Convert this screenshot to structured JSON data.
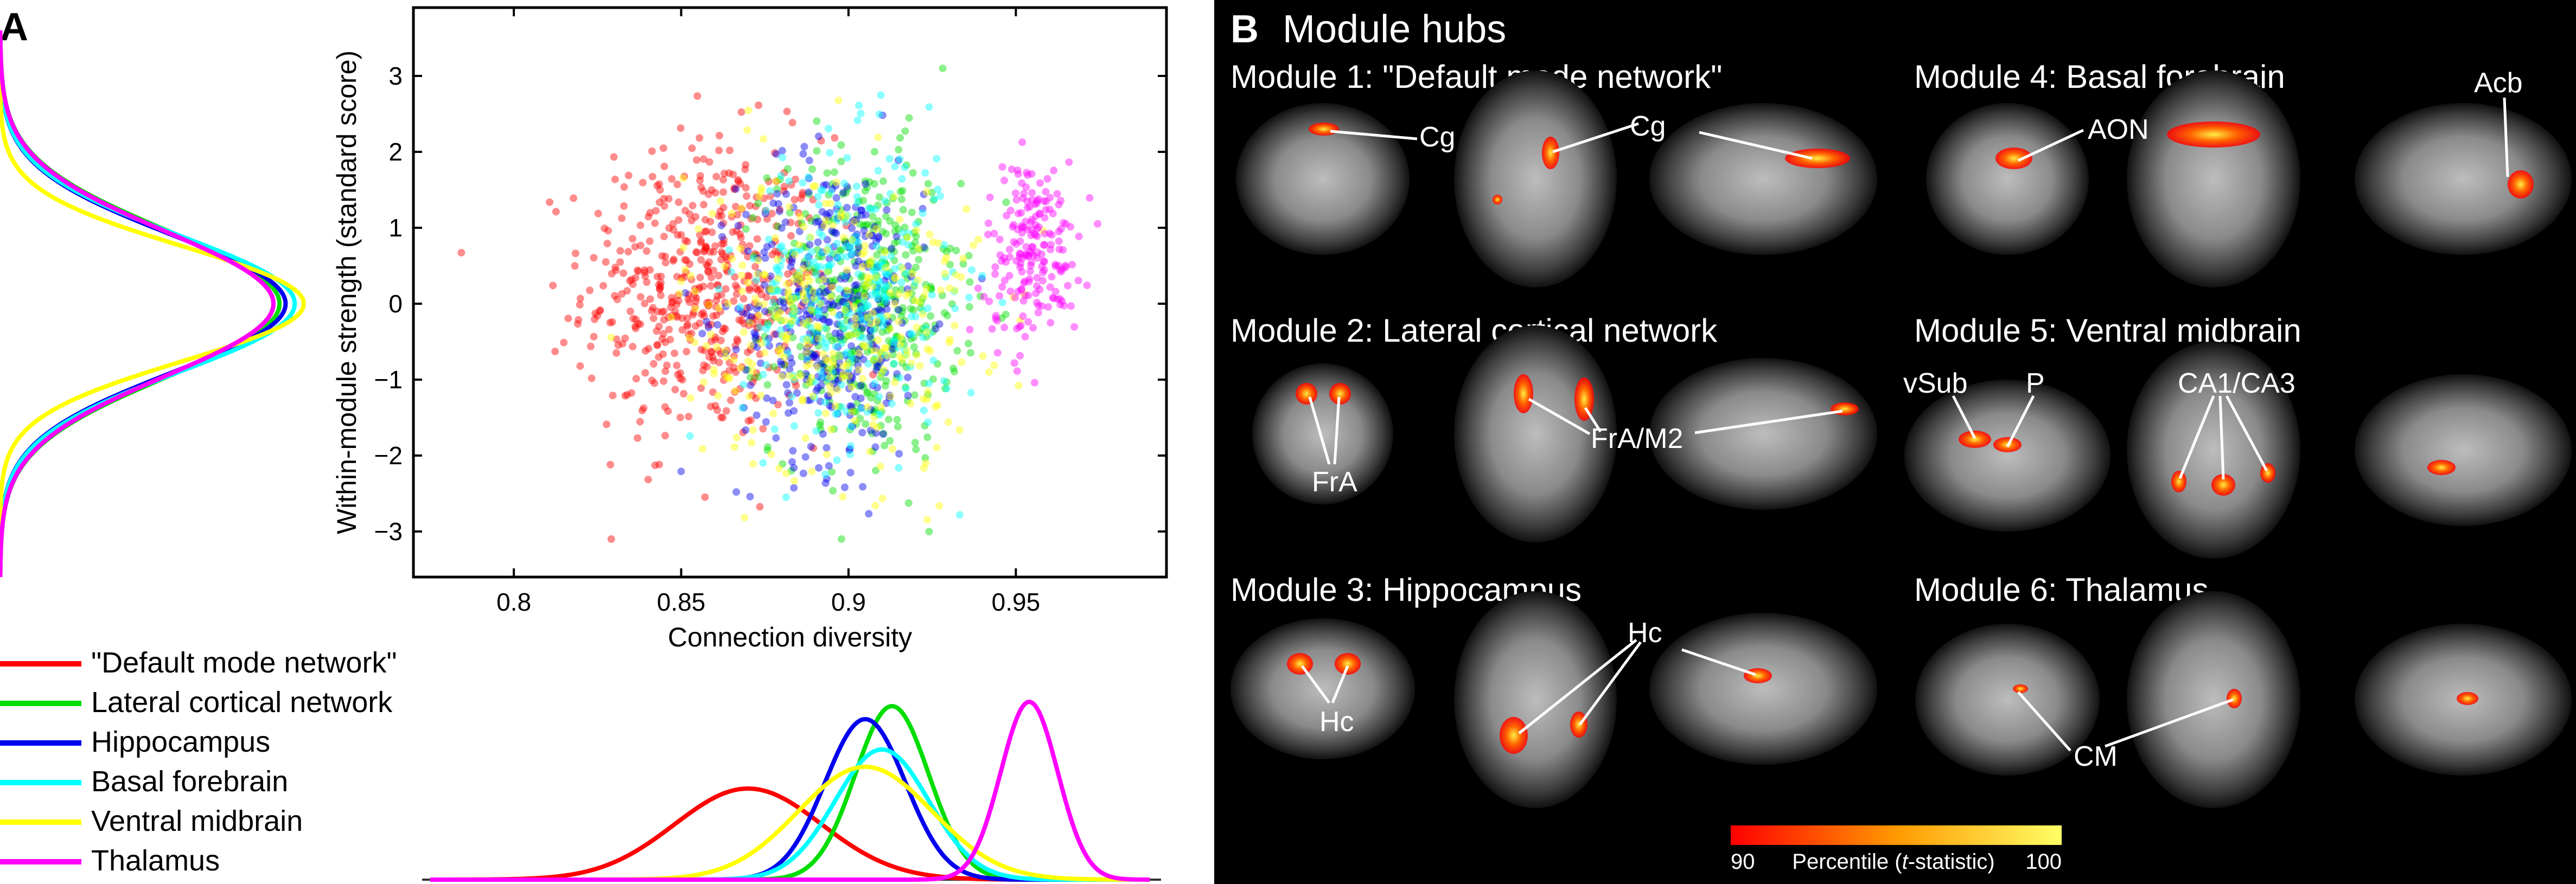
{
  "panel_a": {
    "label": "A",
    "legend": [
      {
        "name": "\"Default mode network\"",
        "color": "#ff0000"
      },
      {
        "name": "Lateral cortical network",
        "color": "#00dd00"
      },
      {
        "name": "Hippocampus",
        "color": "#0000ee"
      },
      {
        "name": "Basal forebrain",
        "color": "#00ffff"
      },
      {
        "name": "Ventral midbrain",
        "color": "#ffff00"
      },
      {
        "name": "Thalamus",
        "color": "#ff00ff"
      }
    ]
  },
  "panel_b": {
    "label": "B",
    "title": "Module hubs",
    "modules": [
      {
        "title": "Module 1: \"Default mode network\"",
        "labels": [
          "Cg",
          "Cg"
        ]
      },
      {
        "title": "Module 2: Lateral cortical network",
        "labels": [
          "FrA",
          "FrA/M2"
        ]
      },
      {
        "title": "Module 3: Hippocampus",
        "labels": [
          "Hc",
          "Hc"
        ]
      },
      {
        "title": "Module 4: Basal forebrain",
        "labels": [
          "AON",
          "Acb"
        ]
      },
      {
        "title": "Module 5: Ventral midbrain",
        "labels": [
          "vSub",
          "P",
          "CA1/CA3"
        ]
      },
      {
        "title": "Module 6: Thalamus",
        "labels": [
          "CM"
        ]
      }
    ],
    "colorbar": {
      "min_label": "90",
      "text_pre": "Percentile (",
      "text_italic": "t",
      "text_post": "-statistic)",
      "max_label": "100"
    }
  },
  "chart_data": [
    {
      "type": "scatter",
      "xlabel": "Connection diversity",
      "ylabel": "Within-module strength (standard score)",
      "xlim": [
        0.77,
        0.995
      ],
      "ylim": [
        -3.6,
        3.9
      ],
      "xticks": [
        0.8,
        0.85,
        0.9,
        0.95
      ],
      "xtick_labels": [
        "0.8",
        "0.85",
        "0.9",
        "0.95"
      ],
      "yticks": [
        -3,
        -2,
        -1,
        0,
        1,
        2,
        3
      ],
      "ytick_labels": [
        "−3",
        "−2",
        "−1",
        "0",
        "1",
        "2",
        "3"
      ],
      "grid": false,
      "series": [
        {
          "name": "\"Default mode network\"",
          "color": "#ff0000",
          "center": [
            0.857,
            0.2
          ],
          "spread": [
            0.018,
            1.0
          ],
          "n": 520
        },
        {
          "name": "Lateral cortical network",
          "color": "#00dd00",
          "center": [
            0.905,
            0.0
          ],
          "spread": [
            0.014,
            1.0
          ],
          "n": 420
        },
        {
          "name": "Hippocampus",
          "color": "#0000ee",
          "center": [
            0.895,
            -0.1
          ],
          "spread": [
            0.014,
            1.0
          ],
          "n": 380
        },
        {
          "name": "Basal forebrain",
          "color": "#00ffff",
          "center": [
            0.9,
            0.1
          ],
          "spread": [
            0.016,
            1.0
          ],
          "n": 300
        },
        {
          "name": "Ventral midbrain",
          "color": "#ffff00",
          "center": [
            0.895,
            -0.2
          ],
          "spread": [
            0.022,
            1.0
          ],
          "n": 330
        },
        {
          "name": "Thalamus",
          "color": "#ff00ff",
          "center": [
            0.955,
            0.7
          ],
          "spread": [
            0.007,
            0.6
          ],
          "n": 200
        }
      ]
    },
    {
      "type": "line",
      "description_axis": "Connection diversity (shared x axis)",
      "series": [
        {
          "name": "\"Default mode network\"",
          "color": "#ff0000",
          "mean": 0.87,
          "sd": 0.022,
          "peak": 0.42
        },
        {
          "name": "Lateral cortical network",
          "color": "#00dd00",
          "mean": 0.913,
          "sd": 0.011,
          "peak": 0.8
        },
        {
          "name": "Hippocampus",
          "color": "#0000ee",
          "mean": 0.905,
          "sd": 0.012,
          "peak": 0.74
        },
        {
          "name": "Basal forebrain",
          "color": "#00ffff",
          "mean": 0.91,
          "sd": 0.014,
          "peak": 0.6
        },
        {
          "name": "Ventral midbrain",
          "color": "#ffff00",
          "mean": 0.905,
          "sd": 0.02,
          "peak": 0.52
        },
        {
          "name": "Thalamus",
          "color": "#ff00ff",
          "mean": 0.954,
          "sd": 0.0085,
          "peak": 0.82
        }
      ]
    },
    {
      "type": "line",
      "description_axis": "Within-module strength (shared y axis)",
      "series": [
        {
          "name": "\"Default mode network\"",
          "color": "#ff0000",
          "mean": 0.0,
          "sd": 0.95,
          "peak": 0.9
        },
        {
          "name": "Lateral cortical network",
          "color": "#00dd00",
          "mean": 0.0,
          "sd": 0.95,
          "peak": 0.92
        },
        {
          "name": "Hippocampus",
          "color": "#0000ee",
          "mean": 0.0,
          "sd": 0.9,
          "peak": 0.94
        },
        {
          "name": "Basal forebrain",
          "color": "#00ffff",
          "mean": 0.0,
          "sd": 0.9,
          "peak": 0.97
        },
        {
          "name": "Ventral midbrain",
          "color": "#ffff00",
          "mean": 0.0,
          "sd": 0.75,
          "peak": 1.0
        },
        {
          "name": "Thalamus",
          "color": "#ff00ff",
          "mean": 0.0,
          "sd": 0.95,
          "peak": 0.9
        }
      ]
    }
  ]
}
